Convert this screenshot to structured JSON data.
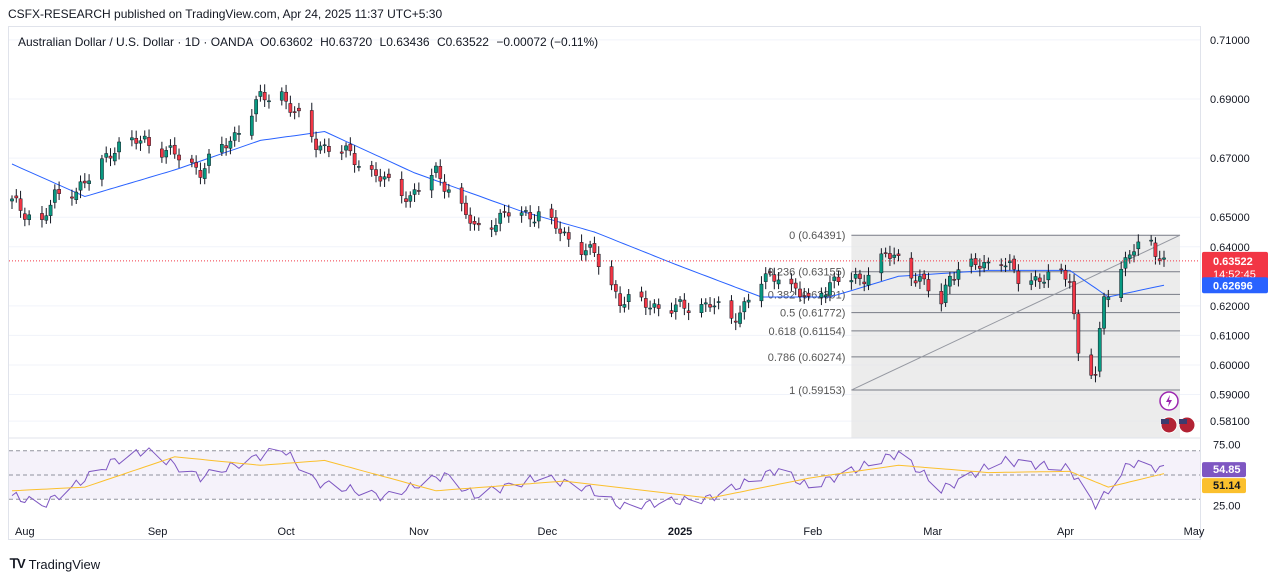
{
  "header": {
    "published": "CSFX-RESEARCH published on TradingView.com, Apr 24, 2025 11:37 UTC+5:30"
  },
  "legend": {
    "symbol": "Australian Dollar / U.S. Dollar · 1D · OANDA",
    "open": "O0.63602",
    "high": "H0.63720",
    "low": "L0.63436",
    "close": "C0.63522",
    "change": "−0.00072 (−0.11%)"
  },
  "footer": {
    "brand": "TradingView"
  },
  "colors": {
    "up": "#089981",
    "down": "#f23645",
    "ma": "#2962ff",
    "rsi": "#7e57c2",
    "rsi_ma": "#fbc02d",
    "fib_zone": "#e6e6e6"
  },
  "chart_data": [
    {
      "type": "candlestick",
      "symbol": "AUDUSD",
      "timeframe": "1D",
      "x_labels": [
        "Aug",
        "Sep",
        "Oct",
        "Nov",
        "Dec",
        "2025",
        "Feb",
        "Mar",
        "Apr",
        "May"
      ],
      "y_ticks": [
        "0.71000",
        "0.69000",
        "0.67000",
        "0.65000",
        "0.64000",
        "0.62000",
        "0.61000",
        "0.60000",
        "0.59000",
        "0.58100"
      ],
      "y_range": [
        0.578,
        0.712
      ],
      "last_price": {
        "value": 0.63522,
        "label": "0.63522",
        "countdown": "14:52:45"
      },
      "ma_price": {
        "value": 0.62696,
        "label": "0.62696"
      },
      "series_anchors": [
        {
          "date": "2024-07-29",
          "c": 0.655
        },
        {
          "date": "2024-08-05",
          "c": 0.648
        },
        {
          "date": "2024-08-08",
          "c": 0.657
        },
        {
          "date": "2024-08-15",
          "c": 0.661
        },
        {
          "date": "2024-08-22",
          "c": 0.674
        },
        {
          "date": "2024-08-29",
          "c": 0.676
        },
        {
          "date": "2024-09-05",
          "c": 0.671
        },
        {
          "date": "2024-09-11",
          "c": 0.666
        },
        {
          "date": "2024-09-18",
          "c": 0.676
        },
        {
          "date": "2024-09-25",
          "c": 0.69
        },
        {
          "date": "2024-09-30",
          "c": 0.692
        },
        {
          "date": "2024-10-03",
          "c": 0.685
        },
        {
          "date": "2024-10-08",
          "c": 0.675
        },
        {
          "date": "2024-10-16",
          "c": 0.671
        },
        {
          "date": "2024-10-24",
          "c": 0.662
        },
        {
          "date": "2024-10-30",
          "c": 0.657
        },
        {
          "date": "2024-11-05",
          "c": 0.665
        },
        {
          "date": "2024-11-08",
          "c": 0.66
        },
        {
          "date": "2024-11-14",
          "c": 0.646
        },
        {
          "date": "2024-11-22",
          "c": 0.651
        },
        {
          "date": "2024-11-29",
          "c": 0.651
        },
        {
          "date": "2024-12-05",
          "c": 0.644
        },
        {
          "date": "2024-12-12",
          "c": 0.637
        },
        {
          "date": "2024-12-18",
          "c": 0.622
        },
        {
          "date": "2024-12-31",
          "c": 0.619
        },
        {
          "date": "2025-01-08",
          "c": 0.621
        },
        {
          "date": "2025-01-13",
          "c": 0.615
        },
        {
          "date": "2025-01-20",
          "c": 0.628
        },
        {
          "date": "2025-01-24",
          "c": 0.631
        },
        {
          "date": "2025-01-31",
          "c": 0.621
        },
        {
          "date": "2025-02-05",
          "c": 0.628
        },
        {
          "date": "2025-02-12",
          "c": 0.629
        },
        {
          "date": "2025-02-18",
          "c": 0.637
        },
        {
          "date": "2025-02-21",
          "c": 0.636
        },
        {
          "date": "2025-03-03",
          "c": 0.621
        },
        {
          "date": "2025-03-05",
          "c": 0.631
        },
        {
          "date": "2025-03-17",
          "c": 0.636
        },
        {
          "date": "2025-03-21",
          "c": 0.629
        },
        {
          "date": "2025-04-02",
          "c": 0.63
        },
        {
          "date": "2025-04-04",
          "c": 0.604
        },
        {
          "date": "2025-04-08",
          "c": 0.596
        },
        {
          "date": "2025-04-10",
          "c": 0.623
        },
        {
          "date": "2025-04-16",
          "c": 0.638
        },
        {
          "date": "2025-04-21",
          "c": 0.641
        },
        {
          "date": "2025-04-24",
          "c": 0.6352
        }
      ],
      "moving_average_anchors": [
        {
          "date": "2024-07-29",
          "v": 0.668
        },
        {
          "date": "2024-08-15",
          "v": 0.657
        },
        {
          "date": "2024-09-05",
          "v": 0.666
        },
        {
          "date": "2024-09-25",
          "v": 0.676
        },
        {
          "date": "2024-10-10",
          "v": 0.679
        },
        {
          "date": "2024-10-31",
          "v": 0.665
        },
        {
          "date": "2024-11-25",
          "v": 0.652
        },
        {
          "date": "2024-12-12",
          "v": 0.645
        },
        {
          "date": "2024-12-31",
          "v": 0.634
        },
        {
          "date": "2025-01-20",
          "v": 0.623
        },
        {
          "date": "2025-02-05",
          "v": 0.623
        },
        {
          "date": "2025-02-21",
          "v": 0.63
        },
        {
          "date": "2025-03-14",
          "v": 0.632
        },
        {
          "date": "2025-04-02",
          "v": 0.632
        },
        {
          "date": "2025-04-11",
          "v": 0.623
        },
        {
          "date": "2025-04-24",
          "v": 0.627
        }
      ],
      "fibonacci": {
        "start_date": "2025-02-10",
        "end_date": "2025-04-24",
        "levels": [
          {
            "ratio": "0",
            "price": 0.64391,
            "label": "0 (0.64391)"
          },
          {
            "ratio": "0.236",
            "price": 0.63155,
            "label": "0.236 (0.63155)"
          },
          {
            "ratio": "0.382",
            "price": 0.62391,
            "label": "0.382 (0.62391)"
          },
          {
            "ratio": "0.5",
            "price": 0.61772,
            "label": "0.5 (0.61772)"
          },
          {
            "ratio": "0.618",
            "price": 0.61154,
            "label": "0.618 (0.61154)"
          },
          {
            "ratio": "0.786",
            "price": 0.60274,
            "label": "0.786 (0.60274)"
          },
          {
            "ratio": "1",
            "price": 0.59153,
            "label": "1 (0.59153)"
          }
        ]
      }
    },
    {
      "type": "line",
      "indicator": "RSI",
      "y_ticks": [
        "75.00",
        "25.00"
      ],
      "y_range": [
        22,
        78
      ],
      "bands": [
        70,
        50,
        30
      ],
      "rsi_value": {
        "value": 54.85,
        "label": "54.85"
      },
      "rsi_ma_value": {
        "value": 51.14,
        "label": "51.14"
      },
      "rsi_anchors": [
        {
          "date": "2024-07-29",
          "v": 33
        },
        {
          "date": "2024-08-05",
          "v": 25
        },
        {
          "date": "2024-08-12",
          "v": 40
        },
        {
          "date": "2024-08-22",
          "v": 62
        },
        {
          "date": "2024-08-29",
          "v": 70
        },
        {
          "date": "2024-09-11",
          "v": 48
        },
        {
          "date": "2024-09-19",
          "v": 58
        },
        {
          "date": "2024-09-30",
          "v": 72
        },
        {
          "date": "2024-10-08",
          "v": 44
        },
        {
          "date": "2024-10-24",
          "v": 32
        },
        {
          "date": "2024-11-07",
          "v": 50
        },
        {
          "date": "2024-11-14",
          "v": 33
        },
        {
          "date": "2024-11-29",
          "v": 48
        },
        {
          "date": "2024-12-10",
          "v": 40
        },
        {
          "date": "2024-12-18",
          "v": 24
        },
        {
          "date": "2025-01-08",
          "v": 31
        },
        {
          "date": "2025-01-24",
          "v": 55
        },
        {
          "date": "2025-01-31",
          "v": 40
        },
        {
          "date": "2025-02-21",
          "v": 68
        },
        {
          "date": "2025-03-03",
          "v": 38
        },
        {
          "date": "2025-03-17",
          "v": 62
        },
        {
          "date": "2025-04-02",
          "v": 55
        },
        {
          "date": "2025-04-08",
          "v": 24
        },
        {
          "date": "2025-04-16",
          "v": 60
        },
        {
          "date": "2025-04-24",
          "v": 54.85
        }
      ],
      "rsi_ma_anchors": [
        {
          "date": "2024-07-29",
          "v": 37
        },
        {
          "date": "2024-08-15",
          "v": 40
        },
        {
          "date": "2024-09-05",
          "v": 65
        },
        {
          "date": "2024-09-25",
          "v": 58
        },
        {
          "date": "2024-10-10",
          "v": 62
        },
        {
          "date": "2024-11-05",
          "v": 37
        },
        {
          "date": "2024-12-05",
          "v": 45
        },
        {
          "date": "2025-01-08",
          "v": 31
        },
        {
          "date": "2025-02-01",
          "v": 48
        },
        {
          "date": "2025-02-21",
          "v": 58
        },
        {
          "date": "2025-03-14",
          "v": 52
        },
        {
          "date": "2025-04-02",
          "v": 53
        },
        {
          "date": "2025-04-11",
          "v": 40
        },
        {
          "date": "2025-04-24",
          "v": 51.14
        }
      ]
    }
  ]
}
